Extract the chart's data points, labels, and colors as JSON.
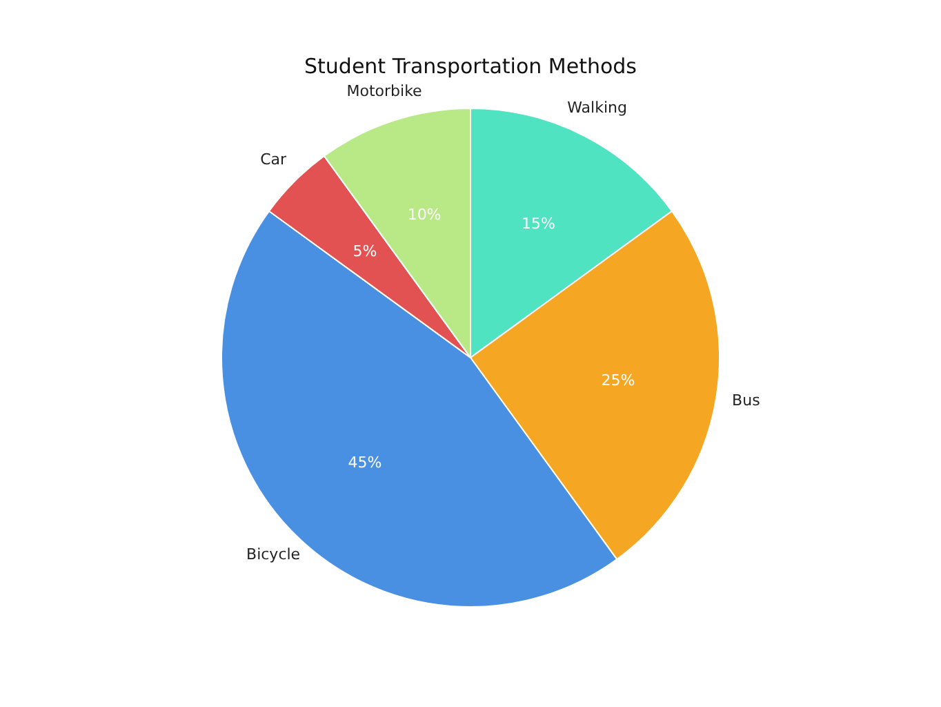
{
  "chart_data": {
    "type": "pie",
    "title": "Student Transportation Methods",
    "categories": [
      "Walking",
      "Bus",
      "Bicycle",
      "Car",
      "Motorbike"
    ],
    "values": [
      15,
      25,
      45,
      5,
      10
    ],
    "colors": [
      "#50e3c2",
      "#f5a623",
      "#4a90e2",
      "#e35252",
      "#b8e986"
    ],
    "value_labels": [
      "15%",
      "25%",
      "45%",
      "5%",
      "10%"
    ],
    "legend": false
  }
}
